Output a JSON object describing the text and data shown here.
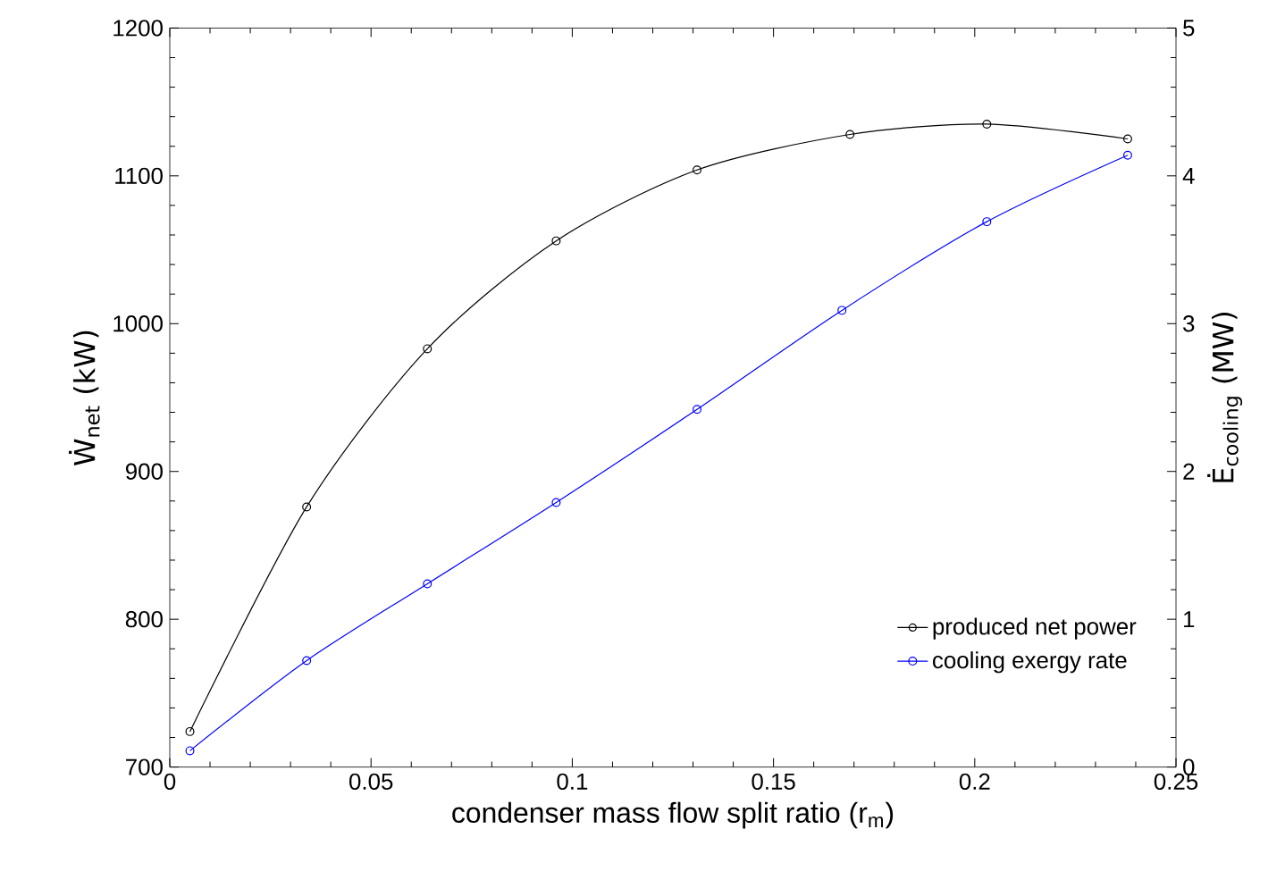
{
  "chart_data": {
    "type": "line",
    "xlabel": "condenser mass flow split ratio (r$_{m}$)",
    "ylabel": "Ẇ$_{net}$ (kW)",
    "y2label": "Ė$_{cooling}$ (MW)",
    "xlim": [
      0,
      0.25
    ],
    "xticks": [
      0,
      0.05,
      0.1,
      0.15,
      0.2,
      0.25
    ],
    "ylim": [
      700,
      1200
    ],
    "yticks": [
      700,
      800,
      900,
      1000,
      1100,
      1200
    ],
    "y2lim": [
      0,
      5
    ],
    "y2ticks": [
      0,
      1,
      2,
      3,
      4,
      5
    ],
    "marker": "circle",
    "legend": "bottom right",
    "series": [
      {
        "name": "produced net power",
        "color": "#000000",
        "x": [
          0.005,
          0.034,
          0.064,
          0.096,
          0.131,
          0.169,
          0.203,
          0.238
        ],
        "values": [
          724,
          876,
          983,
          1056,
          1104,
          1128,
          1135,
          1125
        ]
      },
      {
        "name": "cooling exergy rate",
        "color": "#0000ff",
        "axis": "y2",
        "x": [
          0.005,
          0.034,
          0.064,
          0.096,
          0.131,
          0.167,
          0.203,
          0.238
        ],
        "values": [
          0.11,
          0.72,
          1.24,
          1.79,
          2.42,
          3.09,
          3.69,
          4.14
        ]
      }
    ]
  }
}
